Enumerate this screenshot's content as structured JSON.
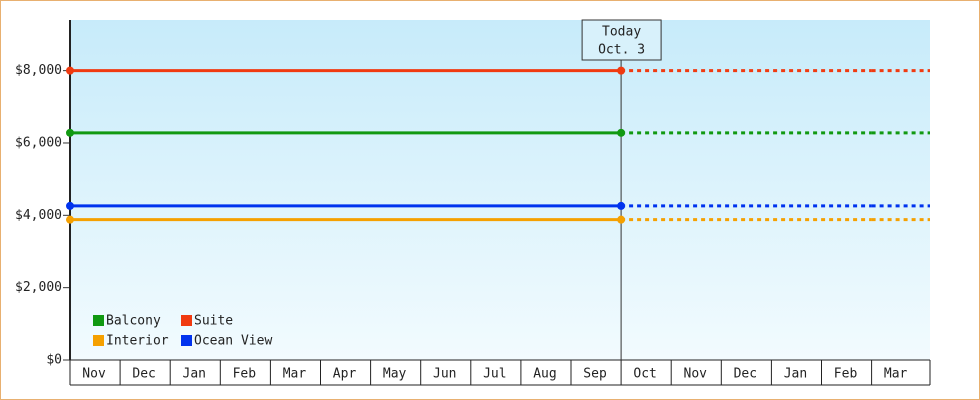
{
  "chart_data": {
    "type": "line",
    "categories": [
      "Nov",
      "Dec",
      "Jan",
      "Feb",
      "Mar",
      "Apr",
      "May",
      "Jun",
      "Jul",
      "Aug",
      "Sep",
      "Oct",
      "Nov",
      "Dec",
      "Jan",
      "Feb",
      "Mar"
    ],
    "series": [
      {
        "name": "Balcony",
        "color": "#119911",
        "values": [
          6280,
          6280,
          6280,
          6280,
          6280,
          6280,
          6280,
          6280,
          6280,
          6280,
          6280,
          6280,
          6280,
          6280,
          6280,
          6280,
          6280
        ]
      },
      {
        "name": "Suite",
        "color": "#f03a10",
        "values": [
          8000,
          8000,
          8000,
          8000,
          8000,
          8000,
          8000,
          8000,
          8000,
          8000,
          8000,
          8000,
          8000,
          8000,
          8000,
          8000,
          8000
        ]
      },
      {
        "name": "Interior",
        "color": "#f5a000",
        "values": [
          3880,
          3880,
          3880,
          3880,
          3880,
          3880,
          3880,
          3880,
          3880,
          3880,
          3880,
          3880,
          3880,
          3880,
          3880,
          3880,
          3880
        ]
      },
      {
        "name": "Ocean View",
        "color": "#0033ee",
        "values": [
          4260,
          4260,
          4260,
          4260,
          4260,
          4260,
          4260,
          4260,
          4260,
          4260,
          4260,
          4260,
          4260,
          4260,
          4260,
          4260,
          4260
        ]
      }
    ],
    "ylim": [
      0,
      9400
    ],
    "yticks": [
      {
        "value": 0,
        "label": "$0"
      },
      {
        "value": 2000,
        "label": "$2,000"
      },
      {
        "value": 4000,
        "label": "$4,000"
      },
      {
        "value": 6000,
        "label": "$6,000"
      },
      {
        "value": 8000,
        "label": "$8,000"
      }
    ],
    "today_label": "Today",
    "today_date": "Oct. 3",
    "today_category": "Oct",
    "legend": "bottom-left"
  }
}
